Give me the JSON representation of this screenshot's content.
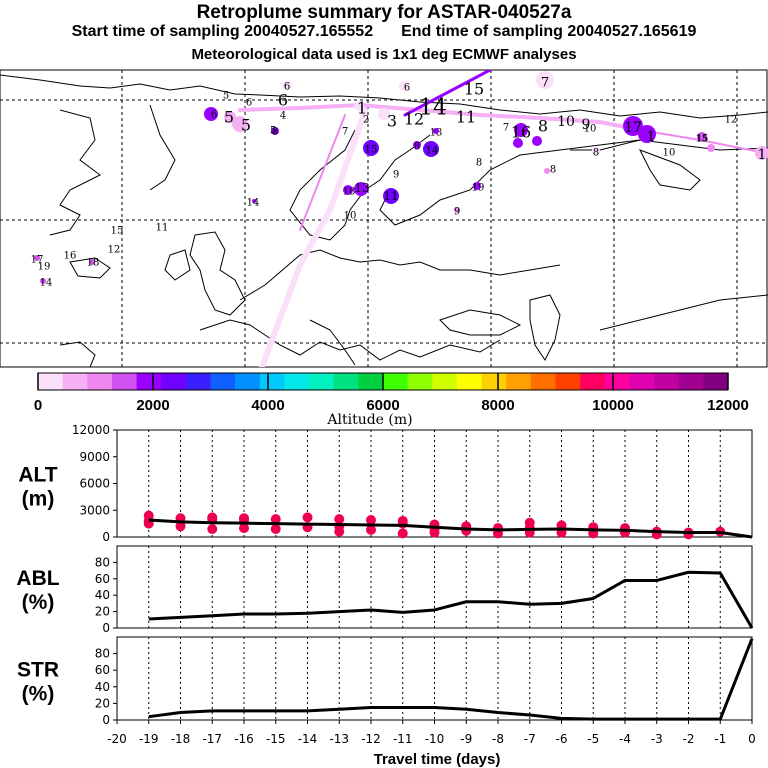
{
  "header": {
    "title": "Retroplume summary for ASTAR-040527a",
    "start_label": "Start time of sampling 20040527.165552",
    "end_label": "End time of sampling 20040527.165619",
    "met_line": "Meteorological data used is 1x1 deg ECMWF analyses"
  },
  "colorbar": {
    "label": "Altitude (m)",
    "ticks": [
      "0",
      "2000",
      "4000",
      "6000",
      "8000",
      "10000",
      "12000"
    ],
    "colors": [
      "#fbe0fb",
      "#f6b0f6",
      "#ee88ee",
      "#d050f0",
      "#9a00ff",
      "#7000ff",
      "#3a20ff",
      "#1060ff",
      "#0090ff",
      "#00c8ff",
      "#00e8e8",
      "#00f0c0",
      "#00e080",
      "#00d040",
      "#40ff00",
      "#90ff00",
      "#d0ff00",
      "#ffff00",
      "#ffd000",
      "#ffa000",
      "#ff7000",
      "#ff4000",
      "#ff0060",
      "#ff00a0",
      "#e000b0",
      "#c000a0",
      "#a00090",
      "#800080"
    ]
  },
  "map": {
    "day_labels": [
      {
        "text": "5"
      },
      {
        "text": "6"
      },
      {
        "text": "6"
      },
      {
        "text": "6"
      },
      {
        "text": "15"
      },
      {
        "text": "7"
      },
      {
        "text": "6"
      },
      {
        "text": "5"
      },
      {
        "text": "4"
      },
      {
        "text": "5"
      },
      {
        "text": "1"
      },
      {
        "text": "2"
      },
      {
        "text": "3"
      },
      {
        "text": "12"
      },
      {
        "text": "14"
      },
      {
        "text": "11"
      },
      {
        "text": "7"
      },
      {
        "text": "16"
      },
      {
        "text": "8"
      },
      {
        "text": "10"
      },
      {
        "text": "9"
      },
      {
        "text": "17"
      },
      {
        "text": "1"
      },
      {
        "text": "12"
      },
      {
        "text": "6"
      },
      {
        "text": "7"
      },
      {
        "text": "13"
      },
      {
        "text": "8"
      },
      {
        "text": "14"
      },
      {
        "text": "15"
      },
      {
        "text": "19"
      },
      {
        "text": "18"
      },
      {
        "text": "15"
      },
      {
        "text": "10"
      },
      {
        "text": "8"
      },
      {
        "text": "8"
      },
      {
        "text": "9"
      },
      {
        "text": "8"
      },
      {
        "text": "11"
      },
      {
        "text": "13"
      },
      {
        "text": "10"
      },
      {
        "text": "9"
      },
      {
        "text": "14"
      },
      {
        "text": "15"
      },
      {
        "text": "11"
      },
      {
        "text": "12"
      },
      {
        "text": "17"
      },
      {
        "text": "16"
      },
      {
        "text": "18"
      },
      {
        "text": "19"
      },
      {
        "text": "14"
      },
      {
        "text": "10"
      },
      {
        "text": "5"
      },
      {
        "text": "15"
      },
      {
        "text": "8"
      },
      {
        "text": "1"
      }
    ]
  },
  "chart_data": [
    {
      "type": "line",
      "panel": "ALT",
      "ylabel": "ALT\n(m)",
      "ylabel_lines": [
        "ALT",
        "(m)"
      ],
      "ylim": [
        0,
        12000
      ],
      "yticks": [
        0,
        3000,
        6000,
        9000,
        12000
      ],
      "x": [
        -19,
        -18,
        -17,
        -16,
        -15,
        -14,
        -13,
        -12,
        -11,
        -10,
        -9,
        -8,
        -7,
        -6,
        -5,
        -4,
        -3,
        -2,
        -1,
        0
      ],
      "series": [
        {
          "name": "mean altitude",
          "values": [
            1900,
            1700,
            1600,
            1550,
            1500,
            1450,
            1400,
            1350,
            1300,
            1100,
            900,
            800,
            850,
            900,
            800,
            750,
            600,
            500,
            500,
            0
          ]
        }
      ],
      "points": [
        {
          "x": -19,
          "y": 2400
        },
        {
          "x": -19,
          "y": 1800
        },
        {
          "x": -19,
          "y": 1500
        },
        {
          "x": -18,
          "y": 2100
        },
        {
          "x": -18,
          "y": 1200
        },
        {
          "x": -17,
          "y": 2200
        },
        {
          "x": -17,
          "y": 2000
        },
        {
          "x": -17,
          "y": 900
        },
        {
          "x": -16,
          "y": 2100
        },
        {
          "x": -16,
          "y": 1900
        },
        {
          "x": -16,
          "y": 1000
        },
        {
          "x": -15,
          "y": 2000
        },
        {
          "x": -15,
          "y": 900
        },
        {
          "x": -14,
          "y": 2200
        },
        {
          "x": -14,
          "y": 1100
        },
        {
          "x": -13,
          "y": 2000
        },
        {
          "x": -13,
          "y": 1200
        },
        {
          "x": -13,
          "y": 600
        },
        {
          "x": -12,
          "y": 1900
        },
        {
          "x": -12,
          "y": 800
        },
        {
          "x": -11,
          "y": 1800
        },
        {
          "x": -11,
          "y": 1500
        },
        {
          "x": -11,
          "y": 400
        },
        {
          "x": -10,
          "y": 1400
        },
        {
          "x": -10,
          "y": 900
        },
        {
          "x": -10,
          "y": 500
        },
        {
          "x": -9,
          "y": 1200
        },
        {
          "x": -9,
          "y": 700
        },
        {
          "x": -8,
          "y": 1000
        },
        {
          "x": -8,
          "y": 400
        },
        {
          "x": -7,
          "y": 1600
        },
        {
          "x": -7,
          "y": 1000
        },
        {
          "x": -7,
          "y": 500
        },
        {
          "x": -6,
          "y": 1300
        },
        {
          "x": -6,
          "y": 500
        },
        {
          "x": -5,
          "y": 1100
        },
        {
          "x": -5,
          "y": 400
        },
        {
          "x": -4,
          "y": 1000
        },
        {
          "x": -4,
          "y": 500
        },
        {
          "x": -3,
          "y": 600
        },
        {
          "x": -3,
          "y": 300
        },
        {
          "x": -2,
          "y": 500
        },
        {
          "x": -2,
          "y": 300
        },
        {
          "x": -1,
          "y": 600
        }
      ]
    },
    {
      "type": "line",
      "panel": "ABL",
      "ylabel_lines": [
        "ABL",
        "(%)"
      ],
      "ylim": [
        0,
        100
      ],
      "yticks": [
        0,
        20,
        40,
        60,
        80
      ],
      "x": [
        -19,
        -18,
        -17,
        -16,
        -15,
        -14,
        -13,
        -12,
        -11,
        -10,
        -9,
        -8,
        -7,
        -6,
        -5,
        -4,
        -3,
        -2,
        -1,
        0
      ],
      "series": [
        {
          "name": "fraction in boundary layer",
          "values": [
            11,
            13,
            15,
            17,
            17,
            18,
            20,
            22,
            19,
            22,
            32,
            32,
            29,
            30,
            36,
            58,
            58,
            68,
            67,
            0
          ]
        }
      ]
    },
    {
      "type": "line",
      "panel": "STR",
      "ylabel_lines": [
        "STR",
        "(%)"
      ],
      "ylim": [
        0,
        100
      ],
      "yticks": [
        0,
        20,
        40,
        60,
        80
      ],
      "x": [
        -19,
        -18,
        -17,
        -16,
        -15,
        -14,
        -13,
        -12,
        -11,
        -10,
        -9,
        -8,
        -7,
        -6,
        -5,
        -4,
        -3,
        -2,
        -1,
        0
      ],
      "series": [
        {
          "name": "fraction in stratosphere",
          "values": [
            4,
            9,
            11,
            11,
            11,
            11,
            13,
            15,
            15,
            15,
            13,
            9,
            6,
            2,
            1,
            1,
            1,
            1,
            1,
            98
          ]
        }
      ],
      "xlabel": "Travel time (days)",
      "xticks": [
        -20,
        -19,
        -18,
        -17,
        -16,
        -15,
        -14,
        -13,
        -12,
        -11,
        -10,
        -9,
        -8,
        -7,
        -6,
        -5,
        -4,
        -3,
        -2,
        -1,
        0
      ]
    }
  ]
}
